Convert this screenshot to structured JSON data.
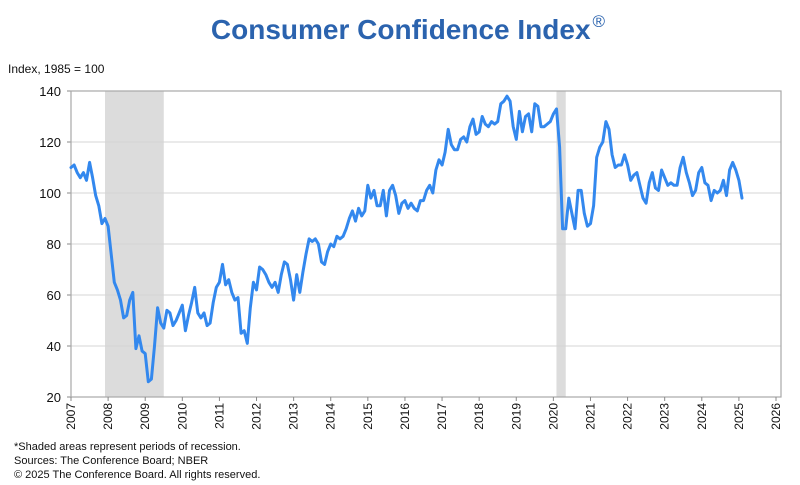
{
  "chart_data": {
    "type": "line",
    "title": "Consumer Confidence Index",
    "title_mark": "®",
    "ylabel": "Index, 1985 = 100",
    "xlabel": "",
    "xlim": [
      2007,
      2026
    ],
    "ylim": [
      20,
      140
    ],
    "yticks": [
      20,
      40,
      60,
      80,
      100,
      120,
      140
    ],
    "xticks": [
      "2007",
      "2008",
      "2009",
      "2010",
      "2011",
      "2012",
      "2013",
      "2014",
      "2015",
      "2016",
      "2017",
      "2018",
      "2019",
      "2020",
      "2021",
      "2022",
      "2023",
      "2024",
      "2025",
      "2026"
    ],
    "grid": "horizontal",
    "legend": "none",
    "line_color": "#3388ee",
    "recession_color": "#dcdcdc",
    "recessions": [
      [
        "2007-12",
        "2009-06"
      ],
      [
        "2020-02",
        "2020-04"
      ]
    ],
    "series": [
      {
        "points": [
          [
            "2007-01",
            110
          ],
          [
            "2007-02",
            111
          ],
          [
            "2007-03",
            108
          ],
          [
            "2007-04",
            106
          ],
          [
            "2007-05",
            108
          ],
          [
            "2007-06",
            105
          ],
          [
            "2007-07",
            112
          ],
          [
            "2007-08",
            106
          ],
          [
            "2007-09",
            99
          ],
          [
            "2007-10",
            95
          ],
          [
            "2007-11",
            88
          ],
          [
            "2007-12",
            90
          ],
          [
            "2008-01",
            87
          ],
          [
            "2008-02",
            76
          ],
          [
            "2008-03",
            65
          ],
          [
            "2008-04",
            62
          ],
          [
            "2008-05",
            58
          ],
          [
            "2008-06",
            51
          ],
          [
            "2008-07",
            52
          ],
          [
            "2008-08",
            58
          ],
          [
            "2008-09",
            61
          ],
          [
            "2008-10",
            39
          ],
          [
            "2008-11",
            44
          ],
          [
            "2008-12",
            38
          ],
          [
            "2009-01",
            37
          ],
          [
            "2009-02",
            26
          ],
          [
            "2009-03",
            27
          ],
          [
            "2009-04",
            40
          ],
          [
            "2009-05",
            55
          ],
          [
            "2009-06",
            49
          ],
          [
            "2009-07",
            47
          ],
          [
            "2009-08",
            54
          ],
          [
            "2009-09",
            53
          ],
          [
            "2009-10",
            48
          ],
          [
            "2009-11",
            50
          ],
          [
            "2009-12",
            53
          ],
          [
            "2010-01",
            56
          ],
          [
            "2010-02",
            46
          ],
          [
            "2010-03",
            52
          ],
          [
            "2010-04",
            57
          ],
          [
            "2010-05",
            63
          ],
          [
            "2010-06",
            53
          ],
          [
            "2010-07",
            51
          ],
          [
            "2010-08",
            53
          ],
          [
            "2010-09",
            48
          ],
          [
            "2010-10",
            49
          ],
          [
            "2010-11",
            57
          ],
          [
            "2010-12",
            63
          ],
          [
            "2011-01",
            65
          ],
          [
            "2011-02",
            72
          ],
          [
            "2011-03",
            64
          ],
          [
            "2011-04",
            66
          ],
          [
            "2011-05",
            61
          ],
          [
            "2011-06",
            58
          ],
          [
            "2011-07",
            59
          ],
          [
            "2011-08",
            45
          ],
          [
            "2011-09",
            46
          ],
          [
            "2011-10",
            41
          ],
          [
            "2011-11",
            55
          ],
          [
            "2011-12",
            65
          ],
          [
            "2012-01",
            62
          ],
          [
            "2012-02",
            71
          ],
          [
            "2012-03",
            70
          ],
          [
            "2012-04",
            68
          ],
          [
            "2012-05",
            65
          ],
          [
            "2012-06",
            63
          ],
          [
            "2012-07",
            65
          ],
          [
            "2012-08",
            61
          ],
          [
            "2012-09",
            68
          ],
          [
            "2012-10",
            73
          ],
          [
            "2012-11",
            72
          ],
          [
            "2012-12",
            66
          ],
          [
            "2013-01",
            58
          ],
          [
            "2013-02",
            68
          ],
          [
            "2013-03",
            61
          ],
          [
            "2013-04",
            69
          ],
          [
            "2013-05",
            76
          ],
          [
            "2013-06",
            82
          ],
          [
            "2013-07",
            81
          ],
          [
            "2013-08",
            82
          ],
          [
            "2013-09",
            80
          ],
          [
            "2013-10",
            73
          ],
          [
            "2013-11",
            72
          ],
          [
            "2013-12",
            77
          ],
          [
            "2014-01",
            80
          ],
          [
            "2014-02",
            79
          ],
          [
            "2014-03",
            83
          ],
          [
            "2014-04",
            82
          ],
          [
            "2014-05",
            83
          ],
          [
            "2014-06",
            86
          ],
          [
            "2014-07",
            90
          ],
          [
            "2014-08",
            93
          ],
          [
            "2014-09",
            89
          ],
          [
            "2014-10",
            94
          ],
          [
            "2014-11",
            91
          ],
          [
            "2014-12",
            93
          ],
          [
            "2015-01",
            103
          ],
          [
            "2015-02",
            98
          ],
          [
            "2015-03",
            101
          ],
          [
            "2015-04",
            95
          ],
          [
            "2015-05",
            95
          ],
          [
            "2015-06",
            101
          ],
          [
            "2015-07",
            91
          ],
          [
            "2015-08",
            101
          ],
          [
            "2015-09",
            103
          ],
          [
            "2015-10",
            99
          ],
          [
            "2015-11",
            92
          ],
          [
            "2015-12",
            96
          ],
          [
            "2016-01",
            97
          ],
          [
            "2016-02",
            94
          ],
          [
            "2016-03",
            96
          ],
          [
            "2016-04",
            94
          ],
          [
            "2016-05",
            93
          ],
          [
            "2016-06",
            97
          ],
          [
            "2016-07",
            97
          ],
          [
            "2016-08",
            101
          ],
          [
            "2016-09",
            103
          ],
          [
            "2016-10",
            100
          ],
          [
            "2016-11",
            109
          ],
          [
            "2016-12",
            113
          ],
          [
            "2017-01",
            111
          ],
          [
            "2017-02",
            116
          ],
          [
            "2017-03",
            125
          ],
          [
            "2017-04",
            119
          ],
          [
            "2017-05",
            117
          ],
          [
            "2017-06",
            117
          ],
          [
            "2017-07",
            121
          ],
          [
            "2017-08",
            122
          ],
          [
            "2017-09",
            120
          ],
          [
            "2017-10",
            126
          ],
          [
            "2017-11",
            129
          ],
          [
            "2017-12",
            123
          ],
          [
            "2018-01",
            124
          ],
          [
            "2018-02",
            130
          ],
          [
            "2018-03",
            127
          ],
          [
            "2018-04",
            126
          ],
          [
            "2018-05",
            128
          ],
          [
            "2018-06",
            127
          ],
          [
            "2018-07",
            128
          ],
          [
            "2018-08",
            135
          ],
          [
            "2018-09",
            136
          ],
          [
            "2018-10",
            138
          ],
          [
            "2018-11",
            136
          ],
          [
            "2018-12",
            126
          ],
          [
            "2019-01",
            121
          ],
          [
            "2019-02",
            132
          ],
          [
            "2019-03",
            124
          ],
          [
            "2019-04",
            130
          ],
          [
            "2019-05",
            131
          ],
          [
            "2019-06",
            124
          ],
          [
            "2019-07",
            135
          ],
          [
            "2019-08",
            134
          ],
          [
            "2019-09",
            126
          ],
          [
            "2019-10",
            126
          ],
          [
            "2019-11",
            127
          ],
          [
            "2019-12",
            128
          ],
          [
            "2020-01",
            131
          ],
          [
            "2020-02",
            133
          ],
          [
            "2020-03",
            118
          ],
          [
            "2020-04",
            86
          ],
          [
            "2020-05",
            86
          ],
          [
            "2020-06",
            98
          ],
          [
            "2020-07",
            92
          ],
          [
            "2020-08",
            86
          ],
          [
            "2020-09",
            101
          ],
          [
            "2020-10",
            101
          ],
          [
            "2020-11",
            92
          ],
          [
            "2020-12",
            87
          ],
          [
            "2021-01",
            88
          ],
          [
            "2021-02",
            95
          ],
          [
            "2021-03",
            114
          ],
          [
            "2021-04",
            118
          ],
          [
            "2021-05",
            120
          ],
          [
            "2021-06",
            128
          ],
          [
            "2021-07",
            125
          ],
          [
            "2021-08",
            115
          ],
          [
            "2021-09",
            110
          ],
          [
            "2021-10",
            111
          ],
          [
            "2021-11",
            111
          ],
          [
            "2021-12",
            115
          ],
          [
            "2022-01",
            111
          ],
          [
            "2022-02",
            105
          ],
          [
            "2022-03",
            107
          ],
          [
            "2022-04",
            108
          ],
          [
            "2022-05",
            103
          ],
          [
            "2022-06",
            98
          ],
          [
            "2022-07",
            96
          ],
          [
            "2022-08",
            104
          ],
          [
            "2022-09",
            108
          ],
          [
            "2022-10",
            102
          ],
          [
            "2022-11",
            101
          ],
          [
            "2022-12",
            109
          ],
          [
            "2023-01",
            106
          ],
          [
            "2023-02",
            103
          ],
          [
            "2023-03",
            104
          ],
          [
            "2023-04",
            103
          ],
          [
            "2023-05",
            103
          ],
          [
            "2023-06",
            110
          ],
          [
            "2023-07",
            114
          ],
          [
            "2023-08",
            108
          ],
          [
            "2023-09",
            104
          ],
          [
            "2023-10",
            99
          ],
          [
            "2023-11",
            101
          ],
          [
            "2023-12",
            108
          ],
          [
            "2024-01",
            110
          ],
          [
            "2024-02",
            104
          ],
          [
            "2024-03",
            103
          ],
          [
            "2024-04",
            97
          ],
          [
            "2024-05",
            101
          ],
          [
            "2024-06",
            100
          ],
          [
            "2024-07",
            101
          ],
          [
            "2024-08",
            105
          ],
          [
            "2024-09",
            99
          ],
          [
            "2024-10",
            109
          ],
          [
            "2024-11",
            112
          ],
          [
            "2024-12",
            109
          ],
          [
            "2025-01",
            105
          ],
          [
            "2025-02",
            98
          ]
        ]
      }
    ]
  },
  "footnotes": [
    "*Shaded areas represent periods of recession.",
    "Sources: The Conference Board;  NBER",
    "© 2025 The Conference Board. All rights reserved."
  ]
}
